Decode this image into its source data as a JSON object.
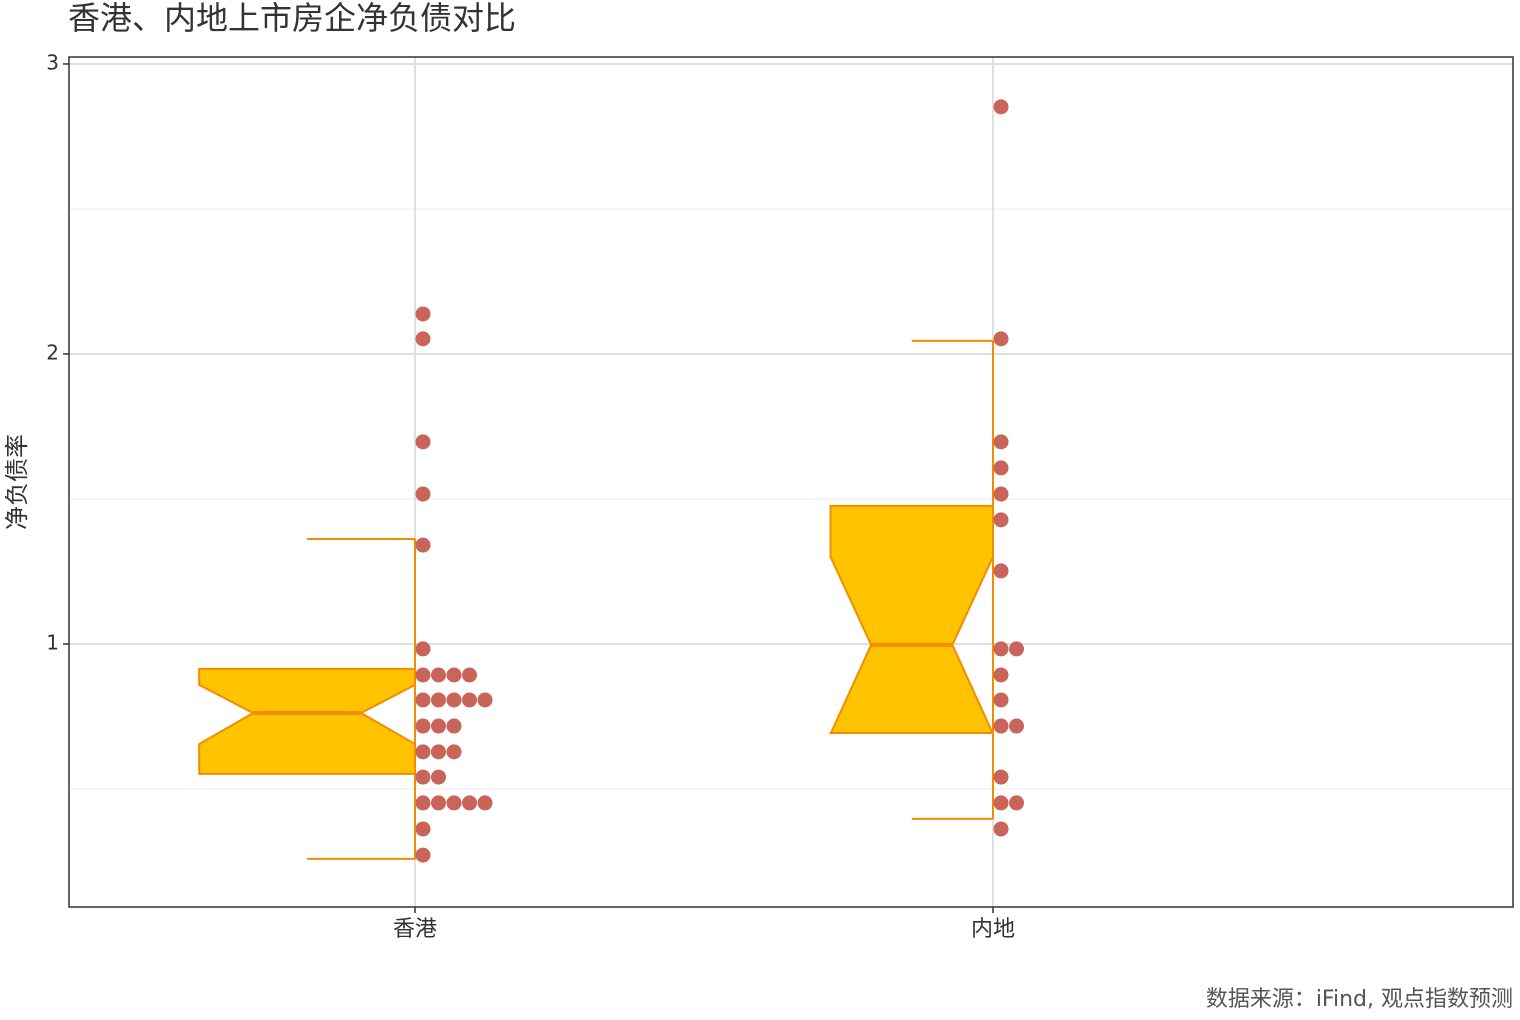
{
  "chart_data": {
    "type": "boxplot",
    "title": "香港、内地上市房企净负债对比",
    "y_label": "净负债率",
    "caption": "数据来源：iFind, 观点指数预测",
    "categories": [
      "香港",
      "内地"
    ],
    "boxes": [
      {
        "whislo": 0.259,
        "q1": 0.552,
        "med": 0.762,
        "q3": 0.914,
        "whishi": 1.362,
        "notch_lo": 0.655,
        "notch_hi": 0.859
      },
      {
        "whislo": 0.397,
        "q1": 0.693,
        "med": 0.997,
        "q3": 1.476,
        "whishi": 2.045,
        "notch_lo": 0.69,
        "notch_hi": 1.3
      }
    ],
    "points": [
      [
        2.138,
        2.052,
        1.697,
        1.517,
        1.341,
        0.983,
        0.893,
        0.893,
        0.893,
        0.893,
        0.807,
        0.807,
        0.807,
        0.807,
        0.807,
        0.717,
        0.717,
        0.717,
        0.628,
        0.628,
        0.628,
        0.541,
        0.541,
        0.452,
        0.452,
        0.452,
        0.452,
        0.452,
        0.362,
        0.272
      ],
      [
        2.852,
        2.052,
        1.697,
        1.607,
        1.517,
        1.428,
        1.252,
        0.983,
        0.983,
        0.893,
        0.807,
        0.717,
        0.717,
        0.541,
        0.452,
        0.452,
        0.362
      ]
    ],
    "box_color": "#ffc300",
    "line_color": "#f28c00",
    "point_color": "#c8645a",
    "ylim": [
      0.093,
      3.024
    ],
    "yticks": [
      1,
      2,
      3
    ],
    "yminor": [
      0.5,
      1.5,
      2.5
    ],
    "grid": true
  }
}
